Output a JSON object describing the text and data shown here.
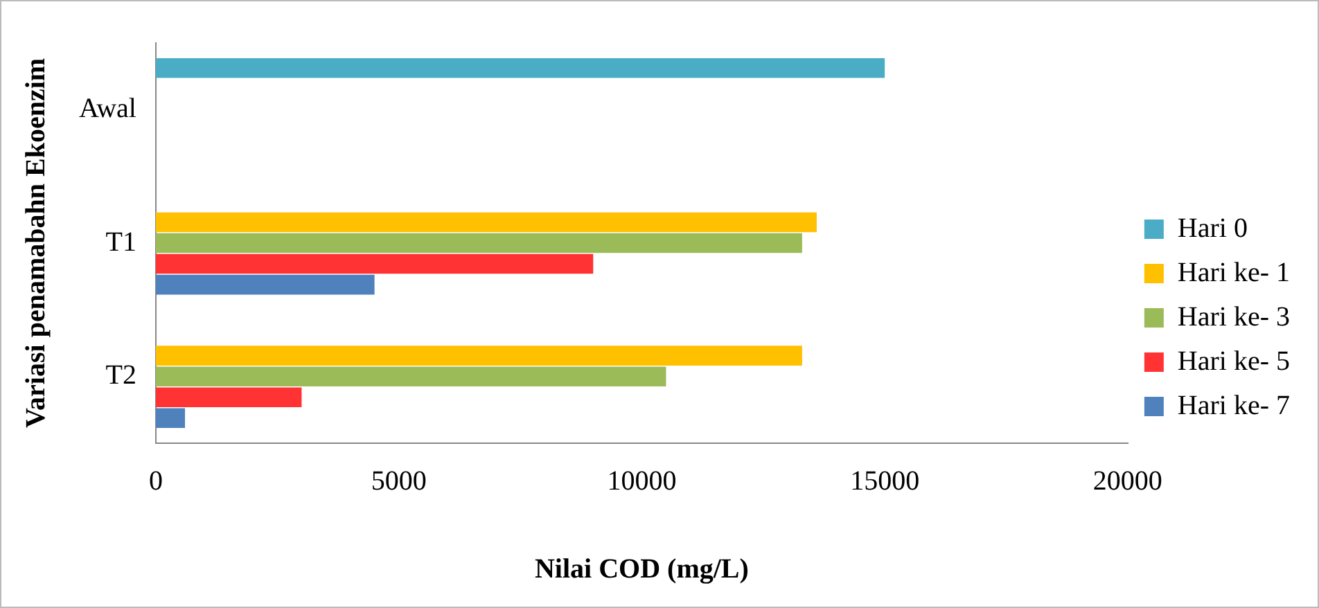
{
  "chart_data": {
    "type": "bar",
    "orientation": "horizontal",
    "xlabel": "Nilai COD (mg/L)",
    "ylabel": "Variasi penamabahn Ekoenzim",
    "categories": [
      "Awal",
      "T1",
      "T2"
    ],
    "series": [
      {
        "name": "Hari 0",
        "color": "#4bacc6",
        "values": [
          15000,
          null,
          null
        ]
      },
      {
        "name": "Hari ke- 1",
        "color": "#ffc000",
        "values": [
          null,
          13600,
          13300
        ]
      },
      {
        "name": "Hari ke- 3",
        "color": "#9bbb59",
        "values": [
          null,
          13300,
          10500
        ]
      },
      {
        "name": "Hari ke- 5",
        "color": "#ff3333",
        "values": [
          null,
          9000,
          3000
        ]
      },
      {
        "name": "Hari ke- 7",
        "color": "#4f81bd",
        "values": [
          null,
          4500,
          600
        ]
      }
    ],
    "xlim": [
      0,
      20000
    ],
    "xticks": [
      0,
      5000,
      10000,
      15000,
      20000
    ],
    "grid": false,
    "legend": "right"
  }
}
